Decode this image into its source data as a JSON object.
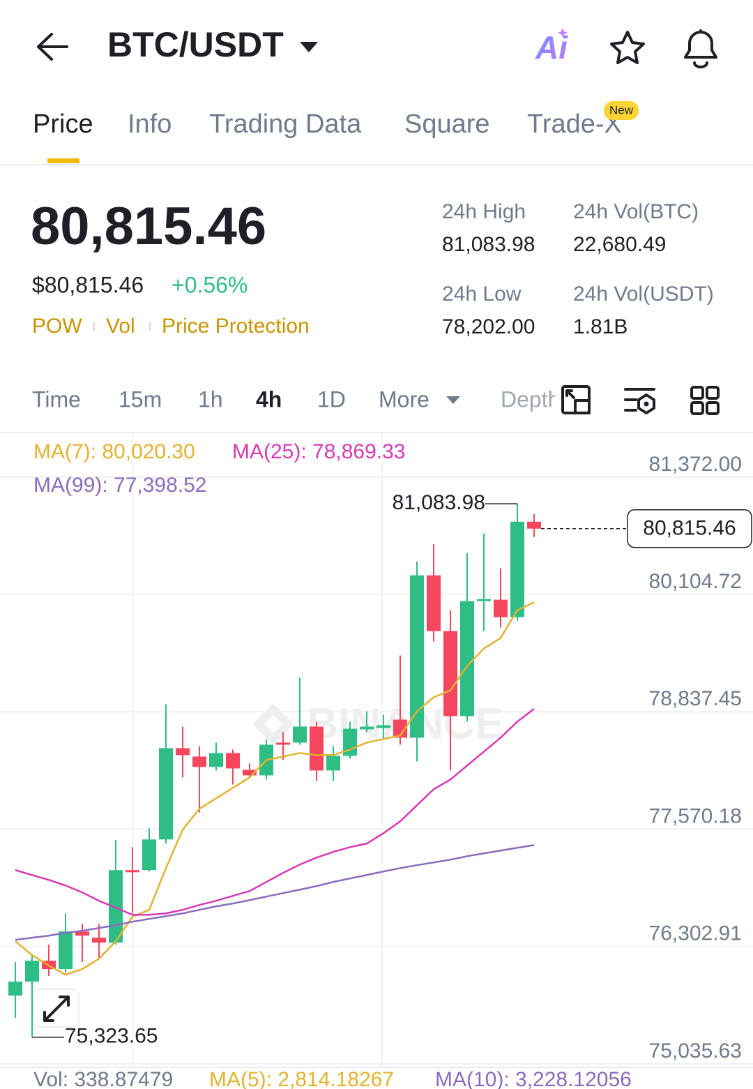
{
  "header": {
    "title": "BTC/USDT",
    "ai_label": "Ai"
  },
  "tabs": {
    "items": [
      "Price",
      "Info",
      "Trading Data",
      "Square",
      "Trade-X"
    ],
    "badge": "New"
  },
  "ticker": {
    "price": "80,815.46",
    "usd_price": "$80,815.46",
    "change": "+0.56%",
    "tags": [
      "POW",
      "Vol",
      "Price Protection"
    ],
    "stats": [
      {
        "label": "24h High",
        "value": "81,083.98"
      },
      {
        "label": "24h Vol(BTC)",
        "value": "22,680.49"
      },
      {
        "label": "24h Low",
        "value": "78,202.00"
      },
      {
        "label": "24h Vol(USDT)",
        "value": "1.81B"
      }
    ]
  },
  "intervals": [
    "Time",
    "15m",
    "1h",
    "4h",
    "1D",
    "More",
    "Depth"
  ],
  "chart_data": {
    "type": "candlestick",
    "watermark": "BINANCE",
    "ylim": [
      75035.63,
      81853
    ],
    "yticks": [
      {
        "value": 81372.0,
        "label": "81,372.00"
      },
      {
        "value": 80104.72,
        "label": "80,104.72"
      },
      {
        "value": 78837.45,
        "label": "78,837.45"
      },
      {
        "value": 77570.18,
        "label": "77,570.18"
      },
      {
        "value": 76302.91,
        "label": "76,302.91"
      },
      {
        "value": 75035.63,
        "label": "75,035.63"
      }
    ],
    "grid": true,
    "up_color": "#2ebd85",
    "down_color": "#f6465d",
    "open": [
      75773,
      75924,
      76150,
      76059,
      76466,
      76398,
      76345,
      77128,
      77128,
      77459,
      78445,
      78354,
      78242,
      78392,
      78211,
      78151,
      78505,
      78505,
      78678,
      78204,
      78362,
      78648,
      78663,
      78753,
      78558,
      80311,
      79709,
      78791,
      80032,
      80048,
      79859,
      80890
    ],
    "high": [
      76135,
      76210,
      76323,
      76661,
      76548,
      76548,
      77451,
      77376,
      77579,
      78919,
      78678,
      78467,
      78505,
      78430,
      78279,
      78543,
      78618,
      79205,
      78731,
      78467,
      78731,
      78844,
      78806,
      79446,
      80462,
      80650,
      79935,
      80552,
      80762,
      80386,
      81083.98,
      80973
    ],
    "low": [
      75533,
      75323.65,
      75984,
      76022,
      76135,
      76172,
      76323,
      76661,
      77113,
      77414,
      78129,
      77752,
      78204,
      78053,
      78129,
      78106,
      78317,
      78482,
      78091,
      78091,
      78332,
      78618,
      78543,
      78482,
      78302,
      79596,
      78204,
      78731,
      79709,
      79747,
      79822,
      80725
    ],
    "close": [
      75924,
      76150,
      76059,
      76466,
      76420,
      76345,
      77128,
      77105,
      77459,
      78445,
      78370,
      78242,
      78392,
      78226,
      78151,
      78482,
      78482,
      78678,
      78204,
      78362,
      78655,
      78678,
      78693,
      78558,
      80311,
      79709,
      78791,
      80032,
      80055,
      79859,
      80890,
      80815.46
    ],
    "series": [
      {
        "name": "MA(7): 80,020.30",
        "color": "#e3b230",
        "values": [
          76360,
          76210,
          76097,
          75999,
          76059,
          76172,
          76360,
          76624,
          76699,
          77150,
          77564,
          77790,
          77903,
          78016,
          78129,
          78317,
          78354,
          78392,
          78370,
          78370,
          78430,
          78505,
          78543,
          78580,
          78844,
          78994,
          79069,
          79333,
          79521,
          79634,
          79935,
          80020.3
        ]
      },
      {
        "name": "MA(25): 78,869.33",
        "color": "#d63ab6",
        "values": [
          77128,
          77075,
          77022,
          76962,
          76887,
          76797,
          76722,
          76646,
          76646,
          76661,
          76699,
          76752,
          76797,
          76850,
          76902,
          77000,
          77098,
          77188,
          77263,
          77324,
          77376,
          77414,
          77527,
          77655,
          77828,
          78001,
          78106,
          78257,
          78407,
          78558,
          78731,
          78869.33
        ]
      },
      {
        "name": "MA(99): 77,398.52",
        "color": "#8a6bbe",
        "values": [
          76375,
          76398,
          76420,
          76451,
          76473,
          76503,
          76533,
          76571,
          76601,
          76631,
          76661,
          76699,
          76737,
          76767,
          76804,
          76842,
          76880,
          76917,
          76955,
          77000,
          77038,
          77075,
          77113,
          77150,
          77181,
          77211,
          77241,
          77278,
          77309,
          77339,
          77369,
          77398.52
        ]
      }
    ],
    "last_price": {
      "value": 80815.46,
      "label": "80,815.46"
    },
    "high_marker": {
      "value": 81083.98,
      "label": "81,083.98"
    },
    "low_marker": {
      "value": 75323.65,
      "label": "75,323.65"
    }
  },
  "volume": {
    "items": [
      "Vol: 338.87479",
      "MA(5): 2,814.18267",
      "MA(10): 3,228.12056"
    ]
  }
}
